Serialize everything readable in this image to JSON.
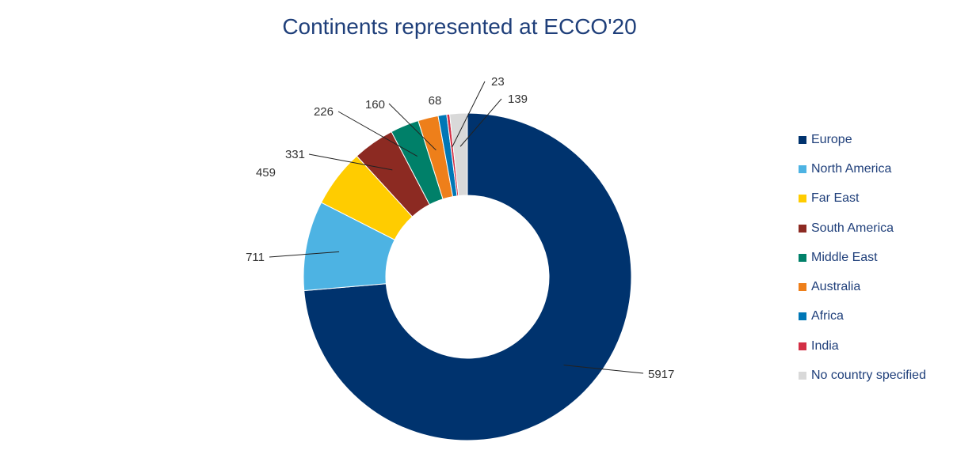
{
  "chart_data": {
    "type": "pie",
    "title": "Continents represented at ECCO'20",
    "categories": [
      "Europe",
      "North America",
      "Far East",
      "South America",
      "Middle East",
      "Australia",
      "Africa",
      "India",
      "No country specified"
    ],
    "values": [
      5917,
      711,
      459,
      331,
      226,
      160,
      68,
      23,
      139
    ],
    "colors": [
      "#00336e",
      "#4db3e3",
      "#ffcc00",
      "#8c2a22",
      "#008069",
      "#ee7f1a",
      "#0077b6",
      "#d32f45",
      "#d9d9d9"
    ],
    "legend_position": "right",
    "donut": true
  }
}
